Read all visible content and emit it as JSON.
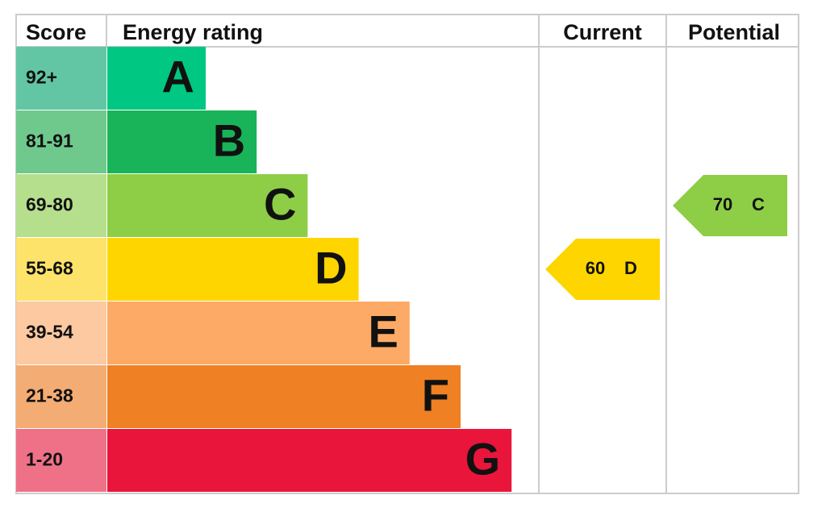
{
  "headers": {
    "score": "Score",
    "rating": "Energy rating",
    "current": "Current",
    "potential": "Potential"
  },
  "rows": [
    {
      "score": "92+",
      "letter": "A"
    },
    {
      "score": "81-91",
      "letter": "B"
    },
    {
      "score": "69-80",
      "letter": "C"
    },
    {
      "score": "55-68",
      "letter": "D"
    },
    {
      "score": "39-54",
      "letter": "E"
    },
    {
      "score": "21-38",
      "letter": "F"
    },
    {
      "score": "1-20",
      "letter": "G"
    }
  ],
  "current": {
    "value": 60,
    "letter": "D"
  },
  "potential": {
    "value": 70,
    "letter": "C"
  }
}
